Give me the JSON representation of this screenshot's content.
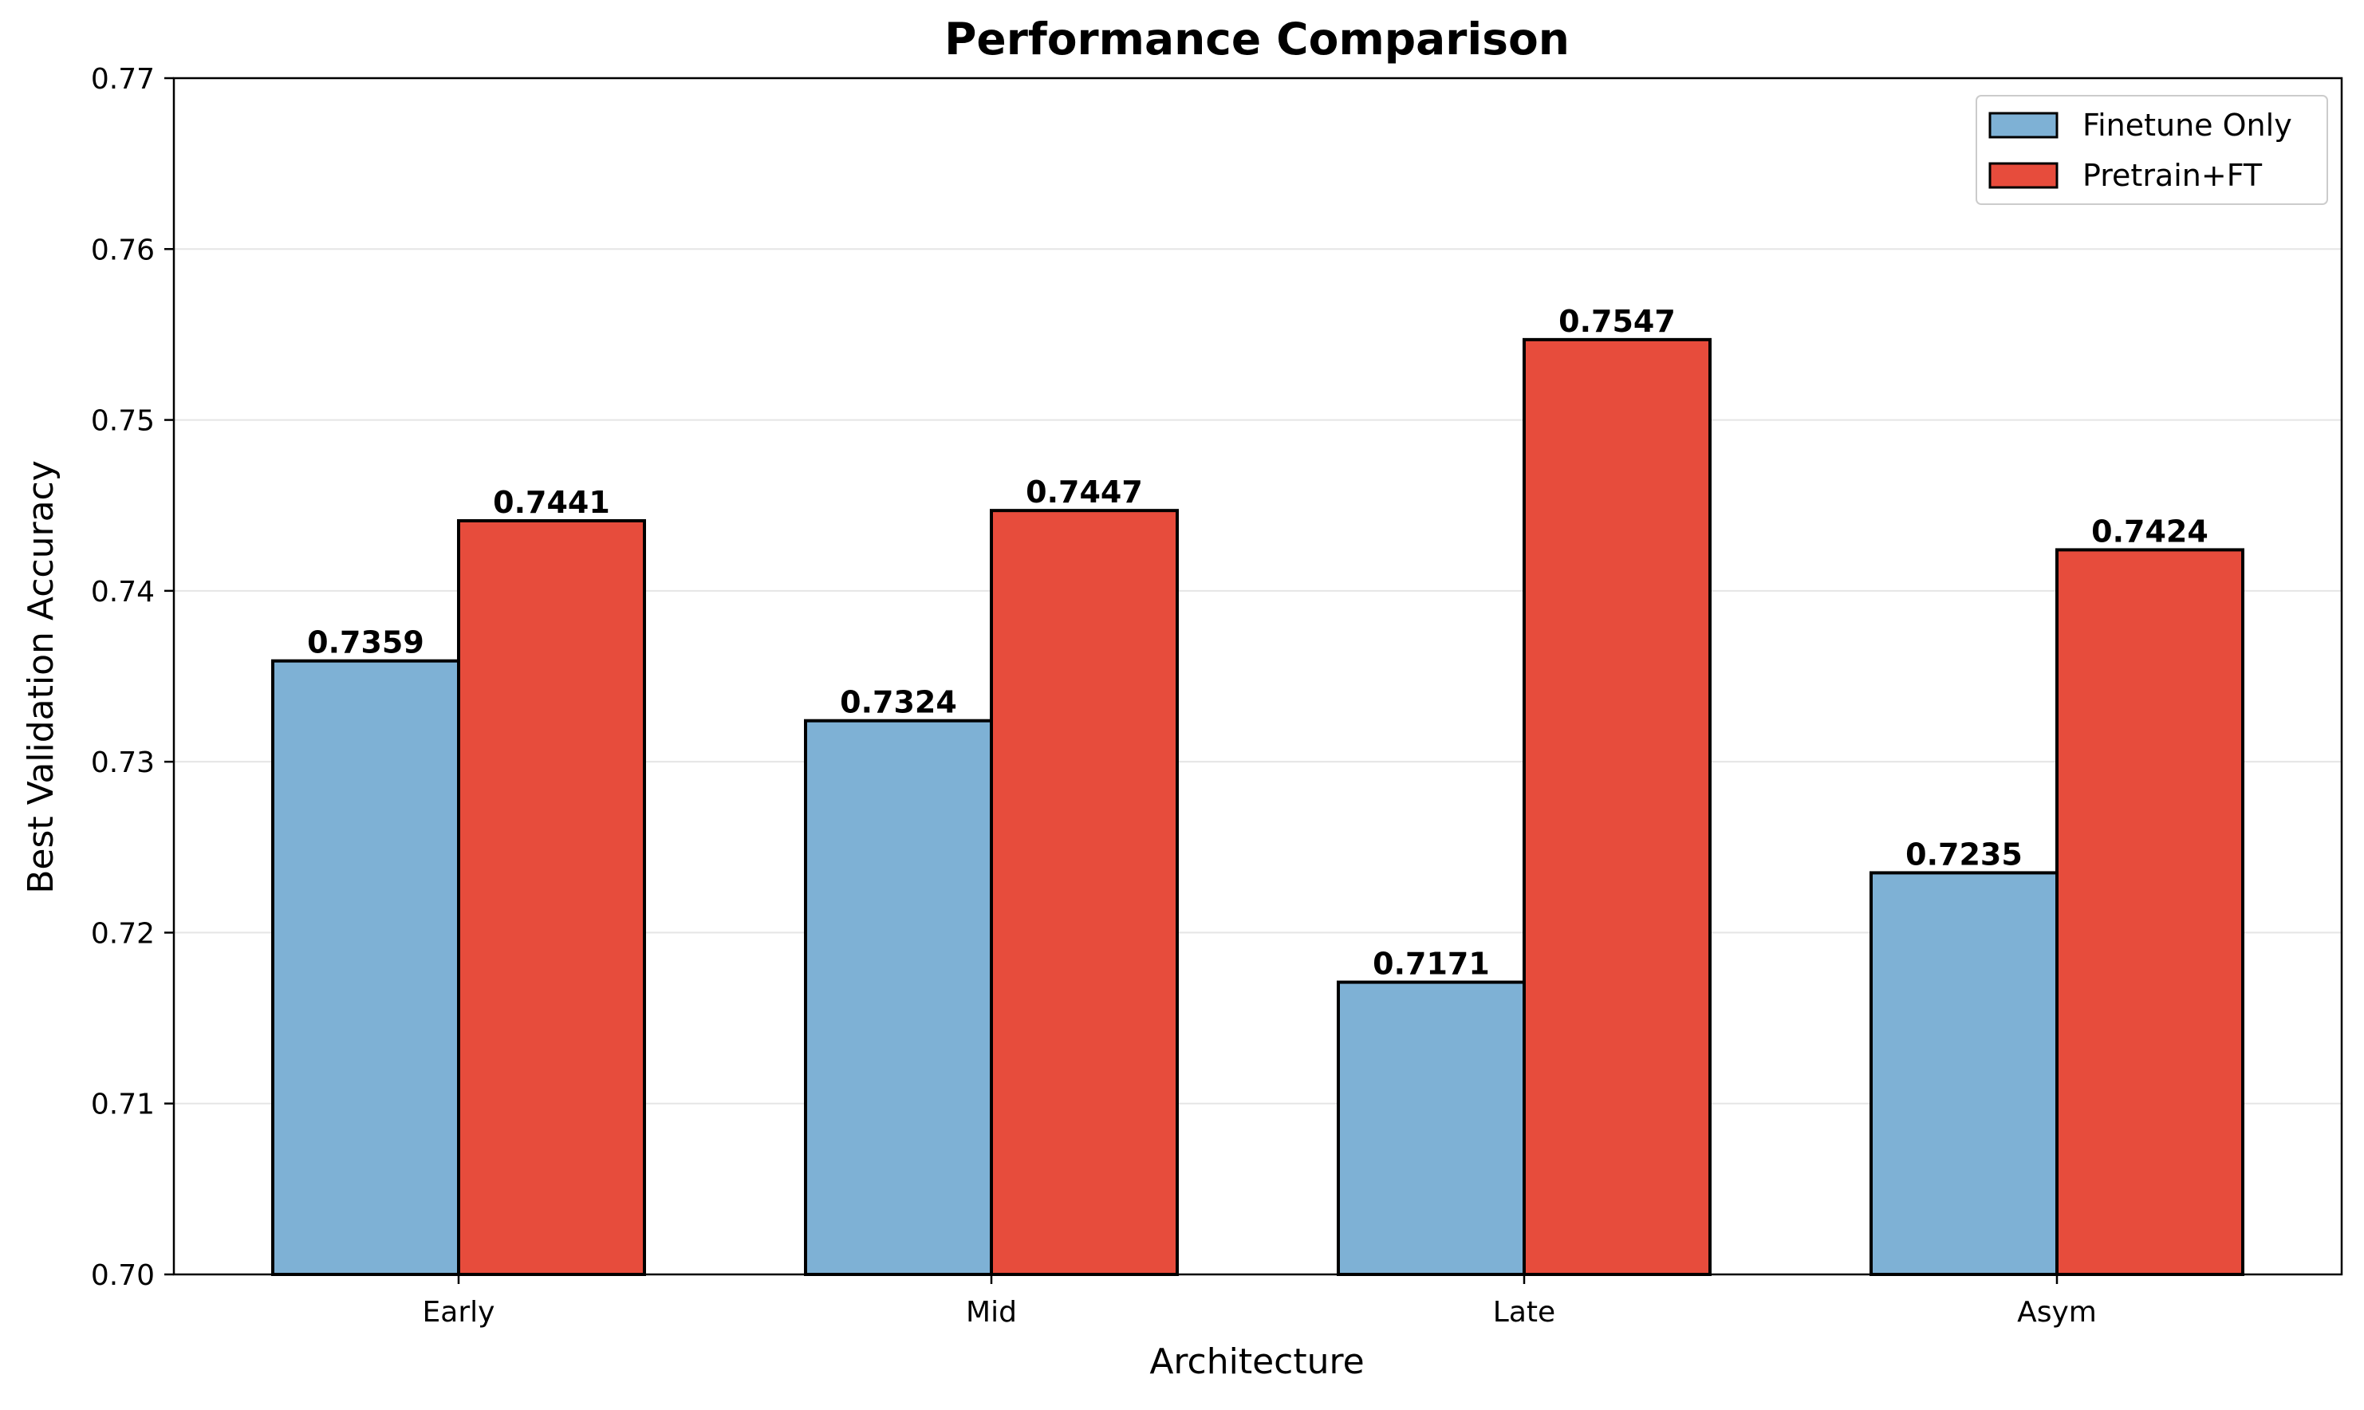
{
  "chart_data": {
    "type": "bar",
    "title": "Performance Comparison",
    "xlabel": "Architecture",
    "ylabel": "Best Validation Accuracy",
    "categories": [
      "Early",
      "Mid",
      "Late",
      "Asym"
    ],
    "series": [
      {
        "name": "Finetune Only",
        "color": "#7eb1d5",
        "values": [
          0.7359,
          0.7324,
          0.7171,
          0.7235
        ],
        "labels": [
          "0.7359",
          "0.7324",
          "0.7171",
          "0.7235"
        ]
      },
      {
        "name": "Pretrain+FT",
        "color": "#e74c3c",
        "values": [
          0.7441,
          0.7447,
          0.7547,
          0.7424
        ],
        "labels": [
          "0.7441",
          "0.7447",
          "0.7547",
          "0.7424"
        ]
      }
    ],
    "ylim": [
      0.7,
      0.77
    ],
    "yticks": [
      0.7,
      0.71,
      0.72,
      0.73,
      0.74,
      0.75,
      0.76,
      0.77
    ],
    "ytick_labels": [
      "0.70",
      "0.71",
      "0.72",
      "0.73",
      "0.74",
      "0.75",
      "0.76",
      "0.77"
    ],
    "grid": "y",
    "legend_position": "top-right"
  }
}
